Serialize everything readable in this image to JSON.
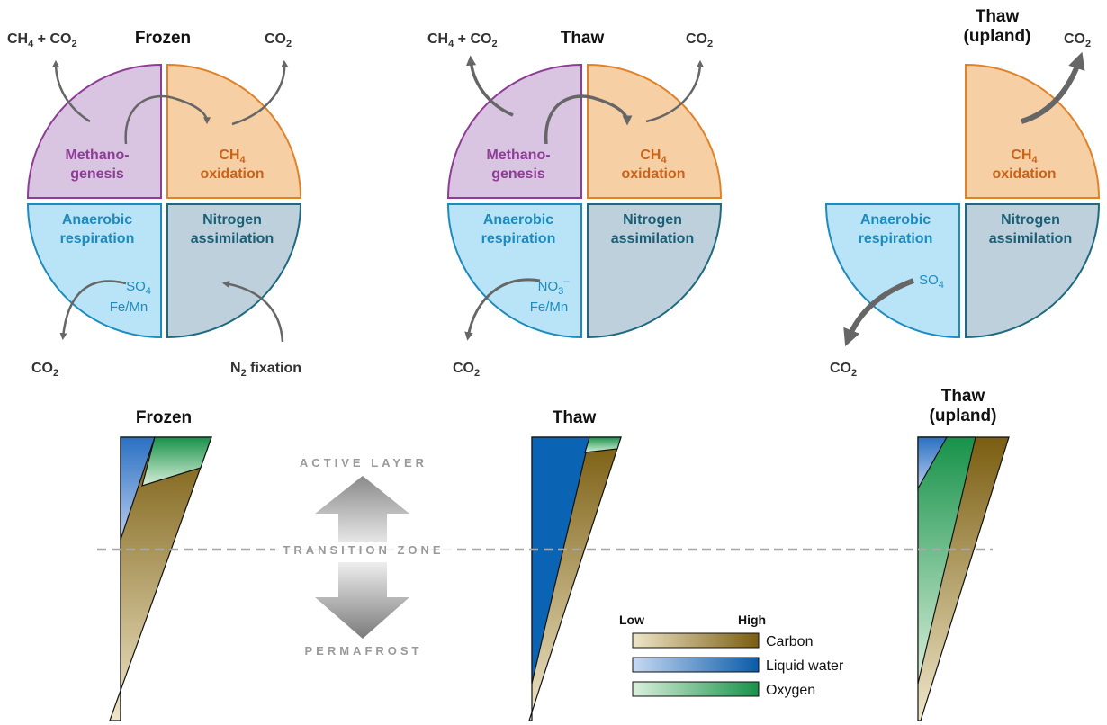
{
  "panels": [
    {
      "id": "frozen",
      "title": [
        "Frozen"
      ],
      "methanogenesis": [
        "Methano-",
        "genesis"
      ],
      "ch4_oxidation": [
        "CH",
        "4",
        "oxidation"
      ],
      "anaerobic": [
        "Anaerobic",
        "respiration"
      ],
      "nitrogen": [
        "Nitrogen",
        "assimilation"
      ],
      "acceptors": [
        [
          "SO",
          "4",
          ""
        ],
        [
          "Fe/Mn",
          "",
          ""
        ]
      ],
      "out_left_top": [
        "CH",
        "4",
        " + CO",
        "2"
      ],
      "out_right_top": [
        "CO",
        "2"
      ],
      "out_left_bottom": [
        "CO",
        "2"
      ],
      "in_right_bottom": [
        "N",
        "2",
        " fixation"
      ]
    },
    {
      "id": "thaw",
      "title": [
        "Thaw"
      ],
      "methanogenesis": [
        "Methano-",
        "genesis"
      ],
      "ch4_oxidation": [
        "CH",
        "4",
        "oxidation"
      ],
      "anaerobic": [
        "Anaerobic",
        "respiration"
      ],
      "nitrogen": [
        "Nitrogen",
        "assimilation"
      ],
      "acceptors": [
        [
          "NO",
          "3",
          "–"
        ],
        [
          "Fe/Mn",
          "",
          ""
        ]
      ],
      "out_left_top": [
        "CH",
        "4",
        " + CO",
        "2"
      ],
      "out_right_top": [
        "CO",
        "2"
      ],
      "out_left_bottom": [
        "CO",
        "2"
      ]
    },
    {
      "id": "thaw-upland",
      "title": [
        "Thaw",
        "(upland)"
      ],
      "ch4_oxidation": [
        "CH",
        "4",
        "oxidation"
      ],
      "anaerobic": [
        "Anaerobic",
        "respiration"
      ],
      "nitrogen": [
        "Nitrogen",
        "assimilation"
      ],
      "acceptors": [
        [
          "SO",
          "4",
          ""
        ]
      ],
      "out_right_top": [
        "CO",
        "2"
      ],
      "out_left_bottom": [
        "CO",
        "2"
      ]
    }
  ],
  "profiles": [
    {
      "title": [
        "Frozen"
      ]
    },
    {
      "title": [
        "Thaw"
      ]
    },
    {
      "title": [
        "Thaw",
        "(upland)"
      ]
    }
  ],
  "zones": {
    "active_layer": "ACTIVE LAYER",
    "transition_zone": "TRANSITION ZONE",
    "permafrost": "PERMAFROST"
  },
  "legend": {
    "low": "Low",
    "high": "High",
    "items": [
      {
        "label": "Carbon",
        "low_color": "#efe6c8",
        "high_color": "#7a5d10"
      },
      {
        "label": "Liquid water",
        "low_color": "#c7d9f2",
        "high_color": "#0a5ba8"
      },
      {
        "label": "Oxygen",
        "low_color": "#dbf0dc",
        "high_color": "#17924a"
      }
    ]
  },
  "colors": {
    "methanogenesis_fill": "#d9c4e2",
    "methanogenesis_stroke": "#8e3d96",
    "oxidation_fill": "#f7cfa4",
    "oxidation_stroke": "#e0822a",
    "anaerobic_fill": "#b9e3f6",
    "anaerobic_stroke": "#1c8bbf",
    "nitrogen_fill": "#bdd0dc",
    "nitrogen_stroke": "#1f6a80",
    "arrow": "#666666",
    "transition_line": "#a8a8a8"
  }
}
